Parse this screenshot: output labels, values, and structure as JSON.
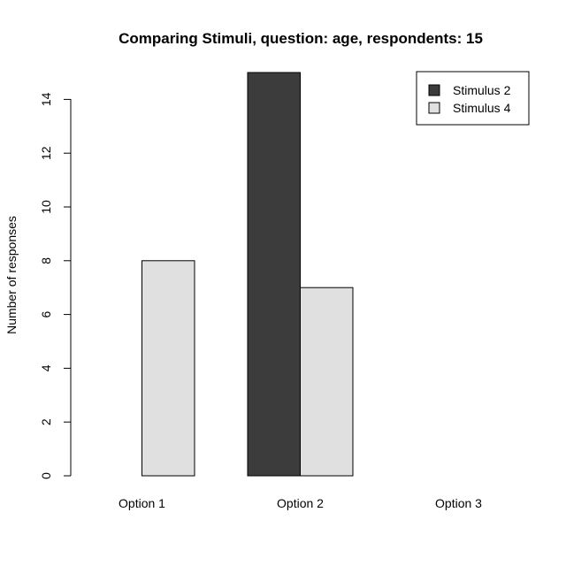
{
  "chart_data": {
    "type": "bar",
    "title": "Comparing Stimuli, question: age, respondents: 15",
    "xlabel": "",
    "ylabel": "Number of responses",
    "categories": [
      "Option 1",
      "Option 2",
      "Option 3"
    ],
    "series": [
      {
        "name": "Stimulus 2",
        "color": "#3c3c3c",
        "values": [
          0,
          15,
          0
        ]
      },
      {
        "name": "Stimulus 4",
        "color": "#e0e0e0",
        "values": [
          8,
          7,
          0
        ]
      }
    ],
    "yticks": [
      0,
      2,
      4,
      6,
      8,
      10,
      12,
      14
    ],
    "ylim": [
      0,
      15
    ],
    "grid": false,
    "legend_position": "top-right"
  }
}
